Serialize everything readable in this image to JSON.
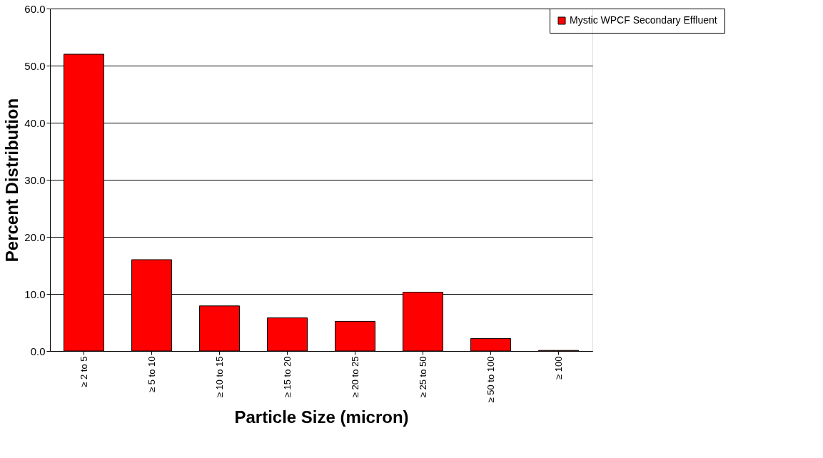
{
  "chart_data": {
    "type": "bar",
    "xlabel": "Particle Size (micron)",
    "ylabel": "Percent Distribution",
    "categories": [
      "≥ 2 to 5",
      "≥ 5 to 10",
      "≥ 10 to 15",
      "≥ 15 to 20",
      "≥ 20 to 25",
      "≥ 25 to 50",
      "≥ 50 to 100",
      "≥ 100"
    ],
    "series": [
      {
        "name": "Mystic WPCF Secondary Effluent",
        "color": "#ff0000",
        "values": [
          52.0,
          16.0,
          7.9,
          5.8,
          5.2,
          10.3,
          2.2,
          0.1
        ]
      }
    ],
    "ylim": [
      0,
      60
    ],
    "yticks": [
      {
        "value": 0,
        "label": "0.0"
      },
      {
        "value": 10,
        "label": "10.0"
      },
      {
        "value": 20,
        "label": "20.0"
      },
      {
        "value": 30,
        "label": "30.0"
      },
      {
        "value": 40,
        "label": "40.0"
      },
      {
        "value": 50,
        "label": "50.0"
      },
      {
        "value": 60,
        "label": "60.0"
      }
    ],
    "grid": "y",
    "legend": "right"
  }
}
